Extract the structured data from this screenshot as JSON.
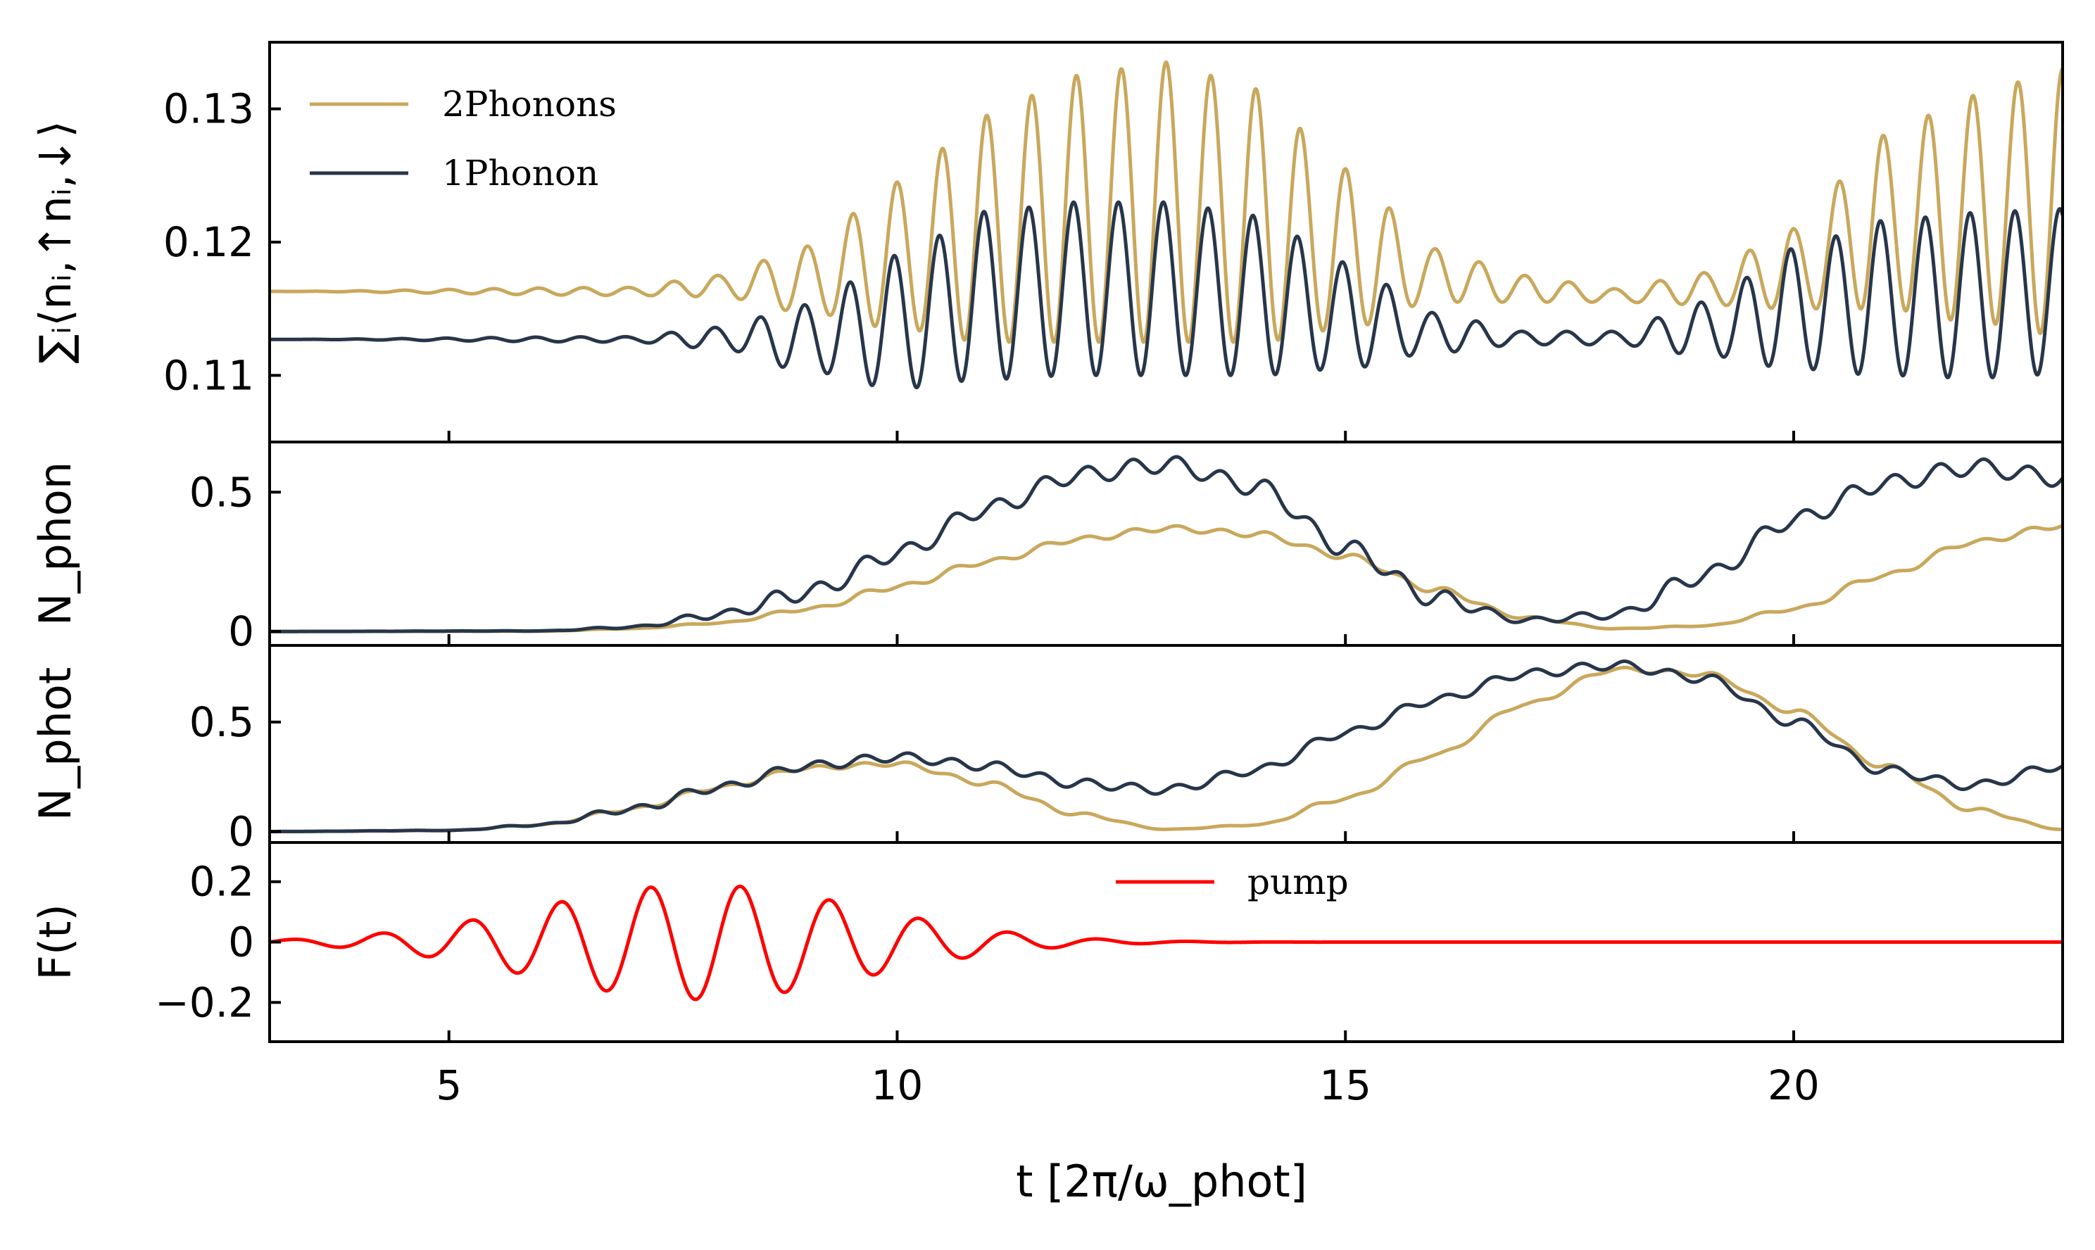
{
  "colors": {
    "two_phonons": "#c9a85c",
    "one_phonon": "#27364a",
    "pump": "#ff0000"
  },
  "chart_data": [
    {
      "panel": "electron-double-occupancy",
      "type": "line",
      "ylabel": "∑ᵢ⟨nᵢ,↑nᵢ,↓⟩",
      "xlim": [
        3,
        23
      ],
      "ylim": [
        0.105,
        0.135
      ],
      "yticks": [
        0.11,
        0.12,
        0.13
      ],
      "ytick_labels": [
        "0.11",
        "0.12",
        "0.13"
      ],
      "legend": {
        "placement": "top-left"
      },
      "series": [
        {
          "name": "2Phonons",
          "color": "#c9a85c",
          "x": [
            3,
            7,
            8,
            9,
            10,
            11,
            12,
            13,
            14,
            15,
            16,
            17,
            18,
            19,
            20,
            21,
            22,
            23
          ],
          "center": [
            0.1163,
            0.1163,
            0.1167,
            0.1172,
            0.119,
            0.121,
            0.1225,
            0.123,
            0.122,
            0.1195,
            0.1175,
            0.1165,
            0.116,
            0.1165,
            0.118,
            0.1215,
            0.1225,
            0.123
          ],
          "amplitude": [
            0,
            0.0003,
            0.0008,
            0.0025,
            0.0055,
            0.0085,
            0.01,
            0.0105,
            0.0095,
            0.006,
            0.002,
            0.001,
            0.0005,
            0.0012,
            0.003,
            0.0065,
            0.0085,
            0.01
          ]
        },
        {
          "name": "1Phonon",
          "color": "#27364a",
          "x": [
            3,
            7,
            8,
            9,
            10,
            11,
            12,
            13,
            14,
            15,
            16,
            17,
            18,
            19,
            20,
            21,
            22,
            23
          ],
          "center": [
            0.1127,
            0.1127,
            0.1128,
            0.1128,
            0.114,
            0.116,
            0.1165,
            0.1165,
            0.116,
            0.1145,
            0.1132,
            0.1128,
            0.1128,
            0.1135,
            0.115,
            0.1158,
            0.116,
            0.1163
          ],
          "amplitude": [
            0,
            0.0002,
            0.0008,
            0.0025,
            0.005,
            0.0063,
            0.0065,
            0.0065,
            0.006,
            0.004,
            0.0015,
            0.0005,
            0.0005,
            0.002,
            0.0045,
            0.0058,
            0.0062,
            0.0062
          ]
        }
      ],
      "oscillation_period": 0.5
    },
    {
      "panel": "phonon-number",
      "type": "line",
      "ylabel": "N_phon",
      "xlim": [
        3,
        23
      ],
      "ylim": [
        -0.05,
        0.68
      ],
      "yticks": [
        0,
        0.5
      ],
      "ytick_labels": [
        "0",
        "0.5"
      ],
      "series": [
        {
          "name": "2Phonons",
          "color": "#c9a85c",
          "x": [
            3,
            6,
            7,
            8,
            9,
            10,
            11,
            12,
            13,
            14,
            15,
            16,
            17,
            18,
            19,
            20,
            21,
            22,
            23
          ],
          "y": [
            0,
            0.001,
            0.01,
            0.03,
            0.08,
            0.16,
            0.25,
            0.33,
            0.37,
            0.35,
            0.27,
            0.15,
            0.05,
            0.01,
            0.02,
            0.08,
            0.2,
            0.32,
            0.38
          ],
          "ripple": 0.01
        },
        {
          "name": "1Phonon",
          "color": "#27364a",
          "x": [
            3,
            6,
            7,
            8,
            9,
            10,
            11,
            12,
            13,
            14,
            15,
            16,
            17,
            18,
            19,
            20,
            21,
            22,
            23
          ],
          "y": [
            0,
            0.002,
            0.015,
            0.06,
            0.14,
            0.28,
            0.44,
            0.56,
            0.6,
            0.52,
            0.3,
            0.12,
            0.04,
            0.06,
            0.2,
            0.4,
            0.53,
            0.59,
            0.55
          ],
          "ripple": 0.03
        }
      ]
    },
    {
      "panel": "photon-number",
      "type": "line",
      "ylabel": "N_phot",
      "xlim": [
        3,
        23
      ],
      "ylim": [
        -0.05,
        0.85
      ],
      "yticks": [
        0,
        0.5
      ],
      "ytick_labels": [
        "0",
        "0.5"
      ],
      "series": [
        {
          "name": "2Phonons",
          "color": "#c9a85c",
          "x": [
            3,
            5,
            6,
            7,
            8,
            9,
            10,
            11,
            12,
            13,
            14,
            15,
            16,
            17,
            18,
            19,
            20,
            21,
            22,
            23
          ],
          "y": [
            0,
            0.005,
            0.03,
            0.1,
            0.2,
            0.29,
            0.31,
            0.22,
            0.08,
            0.01,
            0.03,
            0.15,
            0.35,
            0.58,
            0.74,
            0.72,
            0.55,
            0.3,
            0.1,
            0.01
          ],
          "ripple": 0.01
        },
        {
          "name": "1Phonon",
          "color": "#27364a",
          "x": [
            3,
            5,
            6,
            7,
            8,
            9,
            10,
            11,
            12,
            13,
            14,
            15,
            16,
            17,
            18,
            19,
            20,
            21,
            22,
            23
          ],
          "y": [
            0,
            0.005,
            0.03,
            0.1,
            0.2,
            0.3,
            0.34,
            0.3,
            0.22,
            0.19,
            0.28,
            0.45,
            0.6,
            0.72,
            0.76,
            0.7,
            0.5,
            0.28,
            0.21,
            0.3
          ],
          "ripple": 0.02
        }
      ]
    },
    {
      "panel": "pump-field",
      "type": "line",
      "ylabel": "F(t)",
      "xlabel": "t [2π/ω_phot]",
      "xlim": [
        3,
        23
      ],
      "ylim": [
        -0.33,
        0.33
      ],
      "yticks": [
        -0.2,
        0,
        0.2
      ],
      "ytick_labels": [
        "−0.2",
        "0",
        "0.2"
      ],
      "xticks": [
        5,
        10,
        15,
        20
      ],
      "xtick_labels": [
        "5",
        "10",
        "15",
        "20"
      ],
      "legend": {
        "placement": "top-center"
      },
      "series": [
        {
          "name": "pump",
          "color": "#ff0000",
          "function": "A·exp(-((t-t0)/sigma)^2)·sin(2π·t)",
          "A": 0.19,
          "t0": 7.8,
          "sigma": 2.6
        }
      ]
    }
  ]
}
